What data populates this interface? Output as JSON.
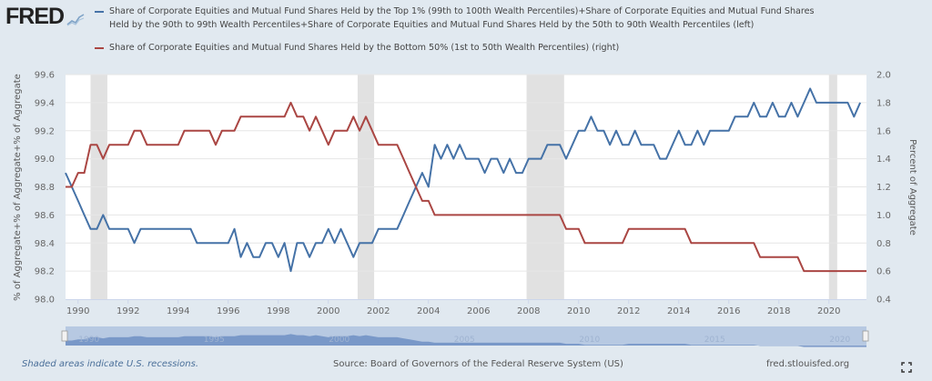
{
  "brand": {
    "logo_text": "FRED",
    "logo_icon": "chart-line-icon"
  },
  "legend": [
    {
      "label": "Share of Corporate Equities and Mutual Fund Shares Held by the Top 1% (99th to 100th Wealth Percentiles)+Share of Corporate Equities and Mutual Fund Shares Held by the 90th to 99th Wealth Percentiles+Share of Corporate Equities and Mutual Fund Shares Held by the 50th to 90th Wealth Percentiles (left)",
      "color": "#4572a7"
    },
    {
      "label": "Share of Corporate Equities and Mutual Fund Shares Held by the Bottom 50% (1st to 50th Wealth Percentiles) (right)",
      "color": "#aa4643"
    }
  ],
  "footer": {
    "note": "Shaded areas indicate U.S. recessions.",
    "source": "Source: Board of Governors of the Federal Reserve System (US)",
    "site": "fred.stlouisfed.org",
    "fullscreen_icon": "fullscreen-icon"
  },
  "chart_data": {
    "type": "line",
    "title": "",
    "x_start": 1989.5,
    "x_step": 0.25,
    "xlim": [
      1989.5,
      2021.5
    ],
    "x_ticks": [
      "1990",
      "1992",
      "1994",
      "1996",
      "1998",
      "2000",
      "2002",
      "2004",
      "2006",
      "2008",
      "2010",
      "2012",
      "2014",
      "2016",
      "2018",
      "2020"
    ],
    "y_left": {
      "label": "% of Aggregate+% of Aggregate+% of Aggregate",
      "ylim": [
        98.0,
        99.6
      ],
      "ticks": [
        "98.0",
        "98.2",
        "98.4",
        "98.6",
        "98.8",
        "99.0",
        "99.2",
        "99.4",
        "99.6"
      ]
    },
    "y_right": {
      "label": "Percent of Aggregate",
      "ylim": [
        0.4,
        2.0
      ],
      "ticks": [
        "0.4",
        "0.6",
        "0.8",
        "1.0",
        "1.2",
        "1.4",
        "1.6",
        "1.8",
        "2.0"
      ]
    },
    "grid": true,
    "recessions": [
      [
        1990.5,
        1991.17
      ],
      [
        2001.17,
        2001.83
      ],
      [
        2007.92,
        2009.42
      ],
      [
        2020.0,
        2020.33
      ]
    ],
    "navigator_ticks": [
      "1990",
      "1995",
      "2000",
      "2005",
      "2010",
      "2015",
      "2020"
    ],
    "series": [
      {
        "name": "Top 1% + 90th-99th + 50th-90th (left)",
        "axis": "left",
        "color": "#4572a7",
        "values": [
          98.9,
          98.8,
          98.7,
          98.6,
          98.5,
          98.5,
          98.6,
          98.5,
          98.5,
          98.5,
          98.5,
          98.4,
          98.5,
          98.5,
          98.5,
          98.5,
          98.5,
          98.5,
          98.5,
          98.5,
          98.5,
          98.4,
          98.4,
          98.4,
          98.4,
          98.4,
          98.4,
          98.5,
          98.3,
          98.4,
          98.3,
          98.3,
          98.4,
          98.4,
          98.3,
          98.4,
          98.2,
          98.4,
          98.4,
          98.3,
          98.4,
          98.4,
          98.5,
          98.4,
          98.5,
          98.4,
          98.3,
          98.4,
          98.4,
          98.4,
          98.5,
          98.5,
          98.5,
          98.5,
          98.6,
          98.7,
          98.8,
          98.9,
          98.8,
          99.1,
          99.0,
          99.1,
          99.0,
          99.1,
          99.0,
          99.0,
          99.0,
          98.9,
          99.0,
          99.0,
          98.9,
          99.0,
          98.9,
          98.9,
          99.0,
          99.0,
          99.0,
          99.1,
          99.1,
          99.1,
          99.0,
          99.1,
          99.2,
          99.2,
          99.3,
          99.2,
          99.2,
          99.1,
          99.2,
          99.1,
          99.1,
          99.2,
          99.1,
          99.1,
          99.1,
          99.0,
          99.0,
          99.1,
          99.2,
          99.1,
          99.1,
          99.2,
          99.1,
          99.2,
          99.2,
          99.2,
          99.2,
          99.3,
          99.3,
          99.3,
          99.4,
          99.3,
          99.3,
          99.4,
          99.3,
          99.3,
          99.4,
          99.3,
          99.4,
          99.5,
          99.4,
          99.4,
          99.4,
          99.4,
          99.4,
          99.4,
          99.3,
          99.4
        ]
      },
      {
        "name": "Bottom 50% (right)",
        "axis": "right",
        "color": "#aa4643",
        "values": [
          1.2,
          1.2,
          1.3,
          1.3,
          1.5,
          1.5,
          1.4,
          1.5,
          1.5,
          1.5,
          1.5,
          1.6,
          1.6,
          1.5,
          1.5,
          1.5,
          1.5,
          1.5,
          1.5,
          1.6,
          1.6,
          1.6,
          1.6,
          1.6,
          1.5,
          1.6,
          1.6,
          1.6,
          1.7,
          1.7,
          1.7,
          1.7,
          1.7,
          1.7,
          1.7,
          1.7,
          1.8,
          1.7,
          1.7,
          1.6,
          1.7,
          1.6,
          1.5,
          1.6,
          1.6,
          1.6,
          1.7,
          1.6,
          1.7,
          1.6,
          1.5,
          1.5,
          1.5,
          1.5,
          1.4,
          1.3,
          1.2,
          1.1,
          1.1,
          1.0,
          1.0,
          1.0,
          1.0,
          1.0,
          1.0,
          1.0,
          1.0,
          1.0,
          1.0,
          1.0,
          1.0,
          1.0,
          1.0,
          1.0,
          1.0,
          1.0,
          1.0,
          1.0,
          1.0,
          1.0,
          0.9,
          0.9,
          0.9,
          0.8,
          0.8,
          0.8,
          0.8,
          0.8,
          0.8,
          0.8,
          0.9,
          0.9,
          0.9,
          0.9,
          0.9,
          0.9,
          0.9,
          0.9,
          0.9,
          0.9,
          0.8,
          0.8,
          0.8,
          0.8,
          0.8,
          0.8,
          0.8,
          0.8,
          0.8,
          0.8,
          0.8,
          0.7,
          0.7,
          0.7,
          0.7,
          0.7,
          0.7,
          0.7,
          0.6,
          0.6,
          0.6,
          0.6,
          0.6,
          0.6,
          0.6,
          0.6,
          0.6,
          0.6,
          0.6
        ]
      }
    ]
  }
}
